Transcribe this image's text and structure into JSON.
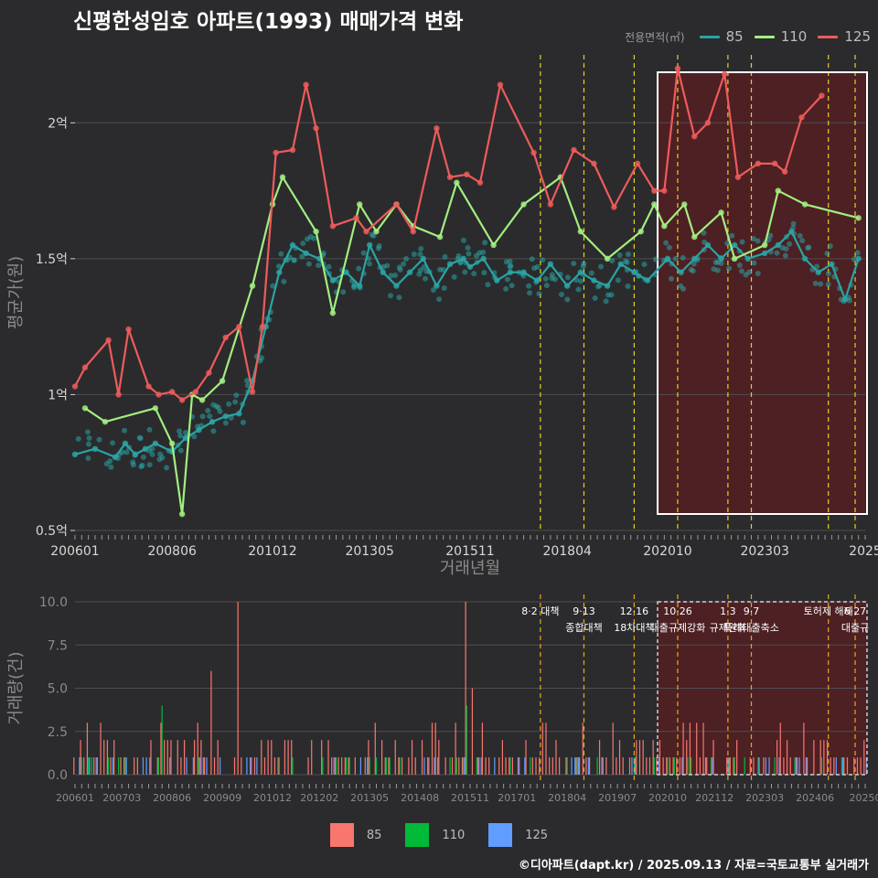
{
  "title": "신평한성임호 아파트(1993) 매매가격 변화",
  "footer": "©디아파트(dapt.kr) / 2025.09.13 / 자료=국토교통부 실거래가",
  "colors": {
    "background": "#2b2b2d",
    "s85": "#2aa4a4",
    "s110": "#a2ee80",
    "s125": "#ee5b5b",
    "bar85": "#f8766d",
    "bar110": "#00ba38",
    "bar125": "#619cff",
    "policy_line": "#e8d21d",
    "highlight_fill": "#5a1e22",
    "highlight_border": "#ffffff"
  },
  "legend_top": {
    "title": "전용면적(㎡)",
    "items": [
      "85",
      "110",
      "125"
    ]
  },
  "legend_bottom": {
    "items": [
      "85",
      "110",
      "125"
    ]
  },
  "chart_data": [
    {
      "type": "line",
      "title": "신평한성임호 아파트(1993) 매매가격 변화",
      "xlabel": "거래년월",
      "ylabel": "평균가(원)",
      "ylim": [
        0.5,
        2.25
      ],
      "yticks": [
        0.5,
        1.0,
        1.5,
        2.0
      ],
      "ytick_labels": [
        "0.5억",
        "1억",
        "1.5억",
        "2억"
      ],
      "x_range": [
        "2006-01",
        "2025-09"
      ],
      "xticks": [
        "2006-01",
        "2008-06",
        "2010-12",
        "2013-05",
        "2015-11",
        "2018-04",
        "2020-10",
        "2023-03",
        "2025-09"
      ],
      "xtick_labels": [
        "200601",
        "200806",
        "201012",
        "201305",
        "201511",
        "201804",
        "202010",
        "202303",
        "2025"
      ],
      "grid": true,
      "legend_position": "top-right",
      "policy_dates": [
        "2017-08",
        "2018-09",
        "2019-12",
        "2021-01",
        "2022-04",
        "2022-11",
        "2024-10",
        "2025-06"
      ],
      "highlight_range": [
        "2020-07",
        "2025-09"
      ],
      "series": [
        {
          "name": "85",
          "x": [
            "2006-01",
            "2006-07",
            "2007-01",
            "2007-04",
            "2007-07",
            "2007-10",
            "2008-01",
            "2008-06",
            "2008-10",
            "2009-02",
            "2009-06",
            "2009-10",
            "2010-02",
            "2010-06",
            "2010-10",
            "2011-02",
            "2011-06",
            "2011-10",
            "2012-02",
            "2012-06",
            "2012-10",
            "2013-02",
            "2013-05",
            "2013-09",
            "2014-01",
            "2014-05",
            "2014-09",
            "2015-01",
            "2015-05",
            "2015-09",
            "2015-11",
            "2016-03",
            "2016-07",
            "2016-11",
            "2017-03",
            "2017-07",
            "2017-11",
            "2018-04",
            "2018-08",
            "2018-12",
            "2019-04",
            "2019-08",
            "2019-12",
            "2020-04",
            "2020-10",
            "2021-02",
            "2021-06",
            "2021-10",
            "2022-02",
            "2022-06",
            "2022-10",
            "2023-03",
            "2023-07",
            "2023-11",
            "2024-03",
            "2024-07",
            "2024-11",
            "2025-03",
            "2025-07"
          ],
          "values": [
            0.78,
            0.8,
            0.77,
            0.82,
            0.78,
            0.8,
            0.82,
            0.79,
            0.84,
            0.87,
            0.9,
            0.92,
            0.93,
            1.05,
            1.25,
            1.45,
            1.55,
            1.52,
            1.5,
            1.42,
            1.45,
            1.4,
            1.55,
            1.45,
            1.4,
            1.45,
            1.5,
            1.4,
            1.48,
            1.5,
            1.47,
            1.5,
            1.42,
            1.45,
            1.45,
            1.42,
            1.48,
            1.4,
            1.45,
            1.42,
            1.4,
            1.48,
            1.45,
            1.42,
            1.5,
            1.45,
            1.5,
            1.55,
            1.5,
            1.55,
            1.5,
            1.52,
            1.55,
            1.6,
            1.5,
            1.45,
            1.48,
            1.35,
            1.5
          ]
        },
        {
          "name": "110",
          "x": [
            "2006-04",
            "2006-10",
            "2008-01",
            "2008-06",
            "2008-09",
            "2008-12",
            "2009-03",
            "2009-09",
            "2010-06",
            "2010-12",
            "2011-03",
            "2012-01",
            "2012-06",
            "2013-02",
            "2013-07",
            "2014-01",
            "2014-06",
            "2015-02",
            "2015-07",
            "2016-06",
            "2017-03",
            "2018-02",
            "2018-08",
            "2019-04",
            "2020-02",
            "2020-06",
            "2020-09",
            "2021-03",
            "2021-06",
            "2022-02",
            "2022-06",
            "2023-03",
            "2023-07",
            "2024-03",
            "2025-07"
          ],
          "values": [
            0.95,
            0.9,
            0.95,
            0.82,
            0.56,
            1.0,
            0.98,
            1.05,
            1.4,
            1.7,
            1.8,
            1.6,
            1.3,
            1.7,
            1.6,
            1.7,
            1.62,
            1.58,
            1.78,
            1.55,
            1.7,
            1.8,
            1.6,
            1.5,
            1.6,
            1.7,
            1.62,
            1.7,
            1.58,
            1.67,
            1.5,
            1.55,
            1.75,
            1.7,
            1.65
          ]
        },
        {
          "name": "125",
          "x": [
            "2006-01",
            "2006-04",
            "2006-11",
            "2007-02",
            "2007-05",
            "2007-11",
            "2008-02",
            "2008-06",
            "2008-09",
            "2009-01",
            "2009-05",
            "2009-10",
            "2010-02",
            "2010-06",
            "2010-09",
            "2011-01",
            "2011-06",
            "2011-10",
            "2012-01",
            "2012-06",
            "2013-01",
            "2013-04",
            "2014-01",
            "2014-06",
            "2015-01",
            "2015-05",
            "2015-10",
            "2016-02",
            "2016-08",
            "2017-06",
            "2017-11",
            "2018-06",
            "2018-12",
            "2019-06",
            "2020-01",
            "2020-06",
            "2020-09",
            "2021-01",
            "2021-06",
            "2021-10",
            "2022-03",
            "2022-07",
            "2023-01",
            "2023-06",
            "2023-09",
            "2024-02",
            "2024-08"
          ],
          "values": [
            1.03,
            1.1,
            1.2,
            1.0,
            1.24,
            1.03,
            1.0,
            1.01,
            0.98,
            1.01,
            1.08,
            1.21,
            1.25,
            1.01,
            1.25,
            1.89,
            1.9,
            2.14,
            1.98,
            1.62,
            1.65,
            1.6,
            1.7,
            1.6,
            1.98,
            1.8,
            1.81,
            1.78,
            2.14,
            1.89,
            1.7,
            1.9,
            1.85,
            1.69,
            1.85,
            1.75,
            1.75,
            2.2,
            1.95,
            2.0,
            2.18,
            1.8,
            1.85,
            1.85,
            1.82,
            2.02,
            2.1
          ]
        }
      ]
    },
    {
      "type": "bar",
      "xlabel": "",
      "ylabel": "거래량(건)",
      "ylim": [
        0,
        10
      ],
      "yticks": [
        0,
        2.5,
        5,
        7.5,
        10
      ],
      "ytick_labels": [
        "0.0",
        "2.5",
        "5.0",
        "7.5",
        "10.0"
      ],
      "x_range": [
        "2006-01",
        "2025-09"
      ],
      "xticks": [
        "2006-01",
        "2007-03",
        "2008-06",
        "2009-09",
        "2010-12",
        "2012-02",
        "2013-05",
        "2014-08",
        "2015-11",
        "2017-01",
        "2018-04",
        "2019-07",
        "2020-10",
        "2021-12",
        "2023-03",
        "2024-06",
        "2025-09"
      ],
      "xtick_labels": [
        "200601",
        "200703",
        "200806",
        "200909",
        "201012",
        "201202",
        "201305",
        "201408",
        "201511",
        "201701",
        "201804",
        "201907",
        "202010",
        "202112",
        "202303",
        "202406",
        "20250"
      ],
      "grid": true,
      "policy_annotations": [
        {
          "date": "2017-08",
          "lines": [
            "8·2 대책"
          ]
        },
        {
          "date": "2018-09",
          "lines": [
            "9·13",
            "종합대책"
          ]
        },
        {
          "date": "2019-12",
          "lines": [
            "12·16",
            "18차대책"
          ]
        },
        {
          "date": "2021-01",
          "lines": [
            "10·26",
            "대출규제강화"
          ]
        },
        {
          "date": "2022-04",
          "lines": [
            "1·3",
            "규제완화"
          ]
        },
        {
          "date": "2022-11",
          "lines": [
            "9·7",
            "특례대출축소"
          ]
        },
        {
          "date": "2024-10",
          "lines": [
            "토허제 해제"
          ]
        },
        {
          "date": "2025-06",
          "lines": [
            "6·27",
            "대출규"
          ]
        }
      ],
      "highlight_range": [
        "2020-07",
        "2025-09"
      ],
      "series_names": [
        "85",
        "110",
        "125"
      ],
      "spikes": [
        {
          "date": "2010-02",
          "series": "85",
          "value": 10
        },
        {
          "date": "2015-10",
          "series": "85",
          "value": 10
        },
        {
          "date": "2009-06",
          "series": "85",
          "value": 6
        },
        {
          "date": "2015-12",
          "series": "85",
          "value": 5
        },
        {
          "date": "2008-03",
          "series": "110",
          "value": 4
        },
        {
          "date": "2015-10",
          "series": "110",
          "value": 4
        }
      ]
    }
  ]
}
